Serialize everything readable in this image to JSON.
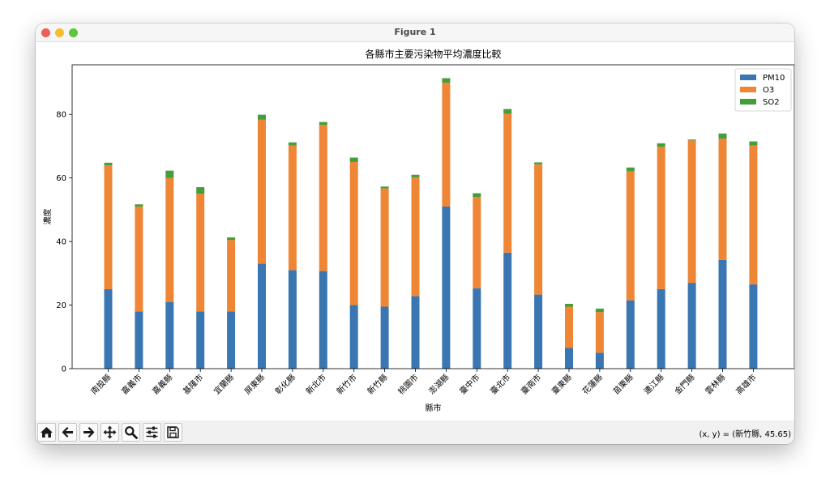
{
  "window": {
    "title": "Figure 1"
  },
  "toolbar": {
    "buttons": [
      {
        "name": "home-button",
        "icon": "home-icon"
      },
      {
        "name": "back-button",
        "icon": "arrow-left-icon"
      },
      {
        "name": "forward-button",
        "icon": "arrow-right-icon"
      },
      {
        "name": "pan-button",
        "icon": "move-icon"
      },
      {
        "name": "zoom-button",
        "icon": "search-icon"
      },
      {
        "name": "configure-subplots-button",
        "icon": "sliders-icon"
      },
      {
        "name": "save-button",
        "icon": "save-icon"
      }
    ],
    "coords": "(x, y) = (新竹縣, 45.65)"
  },
  "chart_data": {
    "type": "bar",
    "stacked": true,
    "title": "各縣市主要污染物平均濃度比較",
    "xlabel": "縣市",
    "ylabel": "濃度",
    "categories": [
      "南投縣",
      "嘉義市",
      "嘉義縣",
      "基隆市",
      "宜蘭縣",
      "屏東縣",
      "彰化縣",
      "新北市",
      "新竹市",
      "新竹縣",
      "桃園市",
      "澎湖縣",
      "臺中市",
      "臺北市",
      "臺南市",
      "臺東縣",
      "花蓮縣",
      "苗栗縣",
      "連江縣",
      "金門縣",
      "雲林縣",
      "高雄市"
    ],
    "series": [
      {
        "name": "PM10",
        "color": "#3a76b1",
        "values": [
          25,
          18,
          21,
          18,
          18,
          33,
          31,
          30.7,
          20,
          19.5,
          22.8,
          51,
          25.3,
          36.5,
          23.3,
          6.5,
          5,
          21.5,
          25,
          27,
          34.2,
          26.5
        ]
      },
      {
        "name": "O3",
        "color": "#ef8636",
        "values": [
          39,
          33,
          39,
          37,
          22.5,
          45.3,
          39.2,
          46,
          45,
          37.2,
          37.4,
          39,
          28.7,
          43.7,
          41,
          13,
          12.8,
          40.6,
          44.8,
          44.8,
          38.2,
          43.7
        ]
      },
      {
        "name": "SO2",
        "color": "#459d3b",
        "values": [
          0.8,
          0.7,
          2.3,
          2.1,
          0.8,
          1.6,
          1.0,
          0.9,
          1.4,
          0.6,
          0.8,
          1.4,
          1.2,
          1.5,
          0.6,
          0.9,
          1.1,
          1.2,
          1.1,
          0.3,
          1.6,
          1.3
        ]
      }
    ],
    "ylim": [
      0,
      95.6
    ],
    "yticks": [
      0,
      20,
      40,
      60,
      80
    ],
    "legend": "top-right",
    "grid": false
  }
}
